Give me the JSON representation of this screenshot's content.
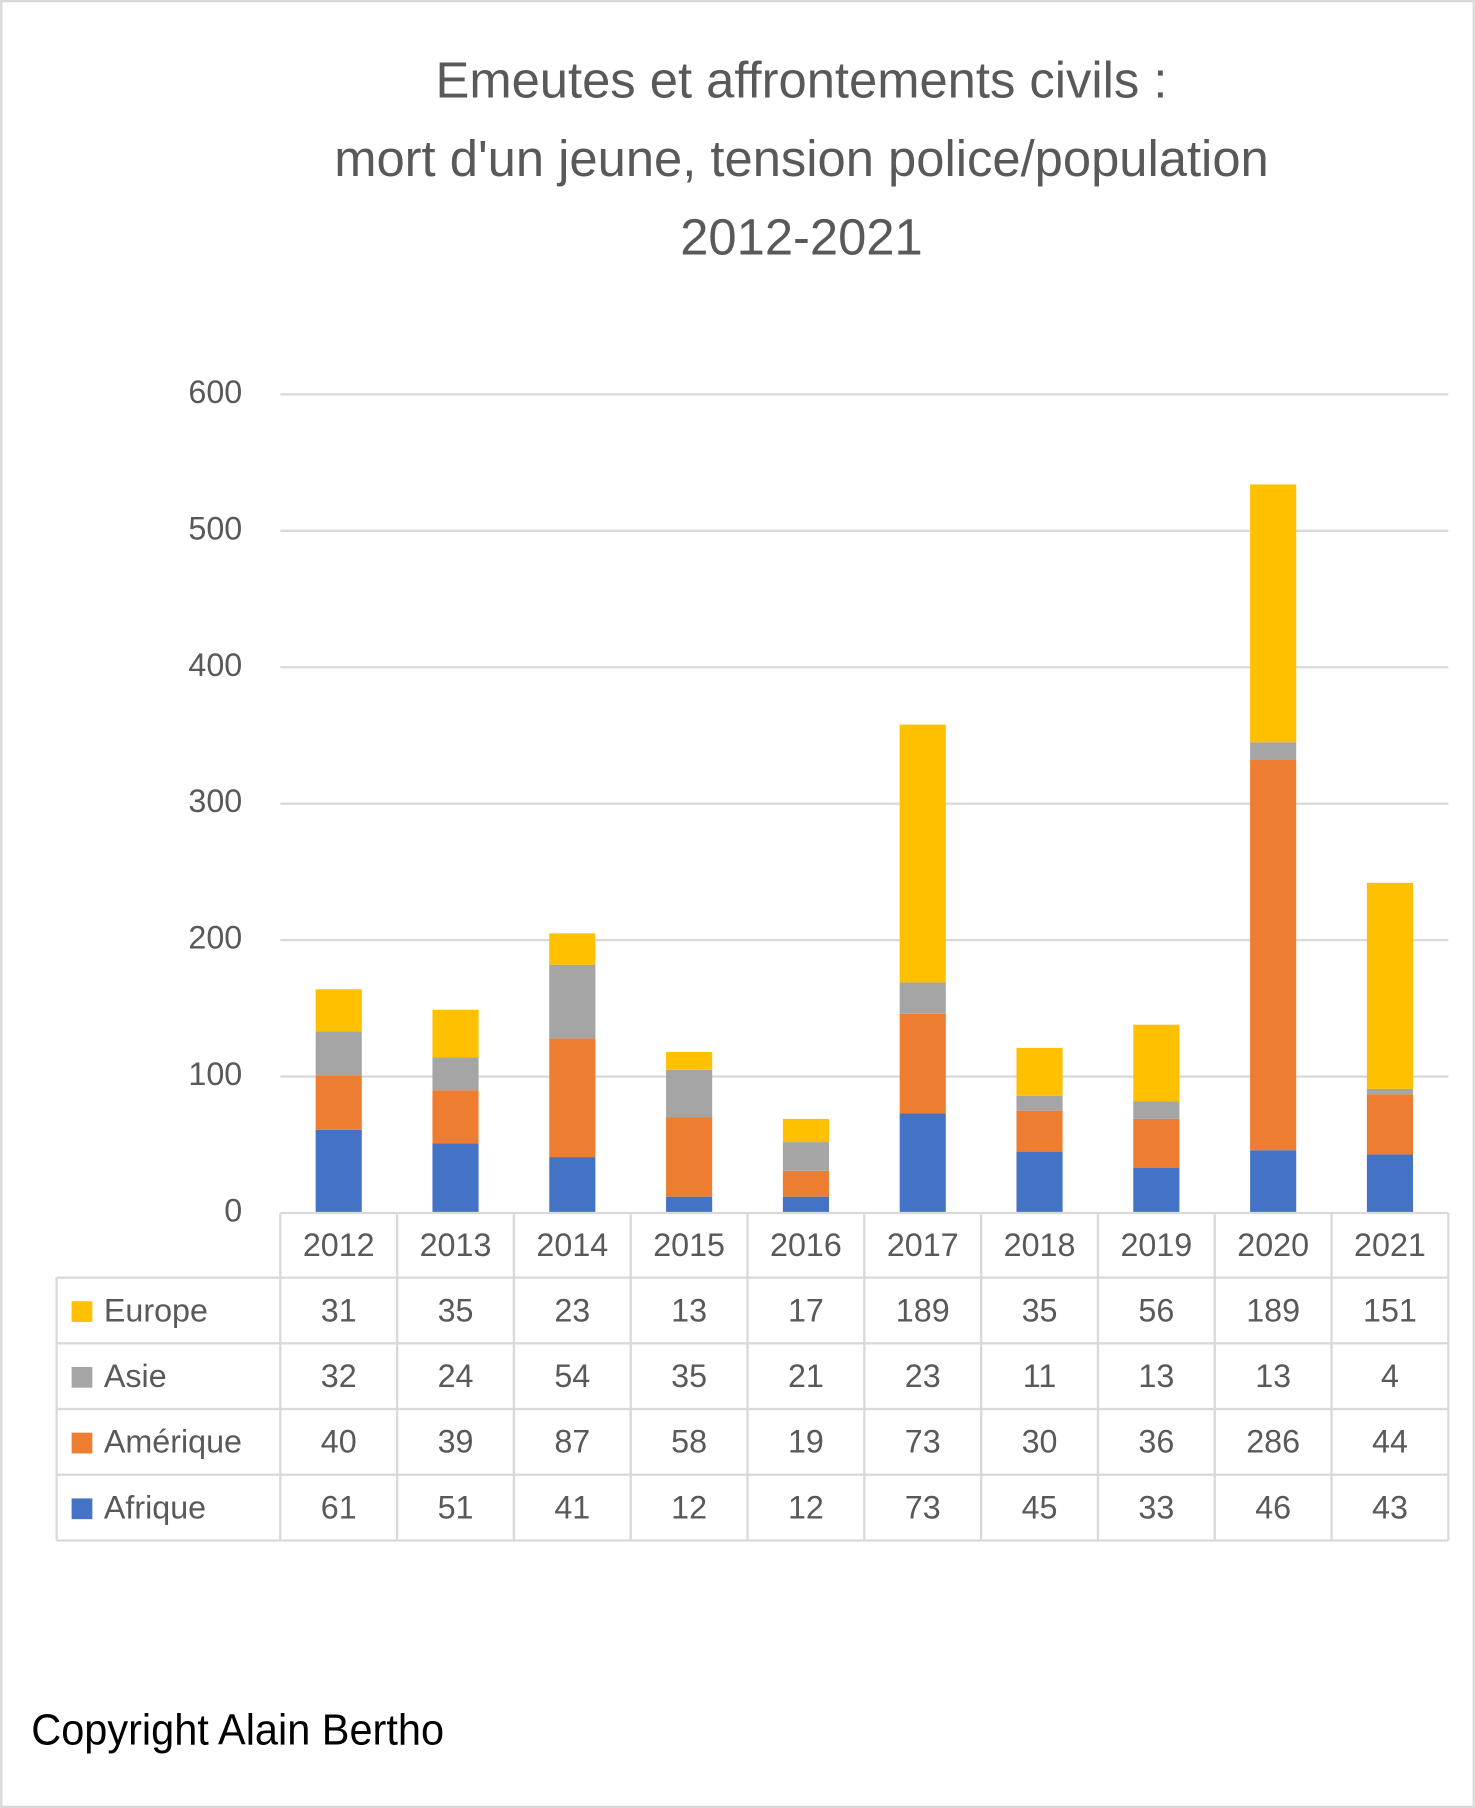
{
  "chart_data": {
    "type": "stacked_bar",
    "title": [
      "Emeutes et affrontements civils :",
      "mort d'un jeune, tension police/population",
      "2012-2021"
    ],
    "categories": [
      "2012",
      "2013",
      "2014",
      "2015",
      "2016",
      "2017",
      "2018",
      "2019",
      "2020",
      "2021"
    ],
    "series": [
      {
        "name": "Afrique",
        "color": "#4472C4",
        "values": [
          61,
          51,
          41,
          12,
          12,
          73,
          45,
          33,
          46,
          43
        ]
      },
      {
        "name": "Amérique",
        "color": "#ED7D31",
        "values": [
          40,
          39,
          87,
          58,
          19,
          73,
          30,
          36,
          286,
          44
        ]
      },
      {
        "name": "Asie",
        "color": "#A5A5A5",
        "values": [
          32,
          24,
          54,
          35,
          21,
          23,
          11,
          13,
          13,
          4
        ]
      },
      {
        "name": "Europe",
        "color": "#FFC000",
        "values": [
          31,
          35,
          23,
          13,
          17,
          189,
          35,
          56,
          189,
          151
        ]
      }
    ],
    "ylim": [
      0,
      600
    ],
    "yticks": [
      0,
      100,
      200,
      300,
      400,
      500,
      600
    ],
    "grid": true,
    "footer": "Copyright Alain Bertho"
  }
}
